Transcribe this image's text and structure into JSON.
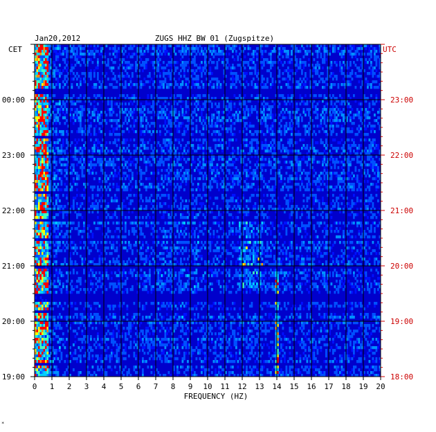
{
  "chart_data": {
    "type": "heatmap",
    "title": "ZUGS HHZ BW 01 (Zugspitze)",
    "date": "Jan20,2012",
    "xlabel": "FREQUENCY (HZ)",
    "xlim": [
      0,
      20
    ],
    "x_ticks": [
      "0",
      "1",
      "2",
      "3",
      "4",
      "5",
      "6",
      "7",
      "8",
      "9",
      "10",
      "11",
      "12",
      "13",
      "14",
      "15",
      "16",
      "17",
      "18",
      "19",
      "20"
    ],
    "left_axis_label": "CET",
    "right_axis_label": "UTC",
    "left_ticks": [
      "00:00",
      "23:00",
      "22:00",
      "21:00",
      "20:00",
      "19:00"
    ],
    "right_ticks": [
      "23:00",
      "22:00",
      "21:00",
      "20:00",
      "19:00",
      "18:00"
    ],
    "colors": {
      "background": "#0000cc",
      "low": "#0000ff",
      "mid": "#00c8ff",
      "high_low_freq": "#ffff00",
      "peak": "#ff0000",
      "grid": "#000000",
      "utc_text": "#cc0000"
    },
    "features": [
      {
        "name": "low-frequency noise band",
        "freq_range_hz": [
          0,
          0.8
        ]
      },
      {
        "name": "tremor band",
        "freq_range_hz": [
          12,
          13
        ],
        "time_utc": "19:50-20:30"
      },
      {
        "name": "narrow line",
        "freq_hz": 14,
        "time_utc": "18:00-20:00"
      }
    ],
    "grid": true
  }
}
